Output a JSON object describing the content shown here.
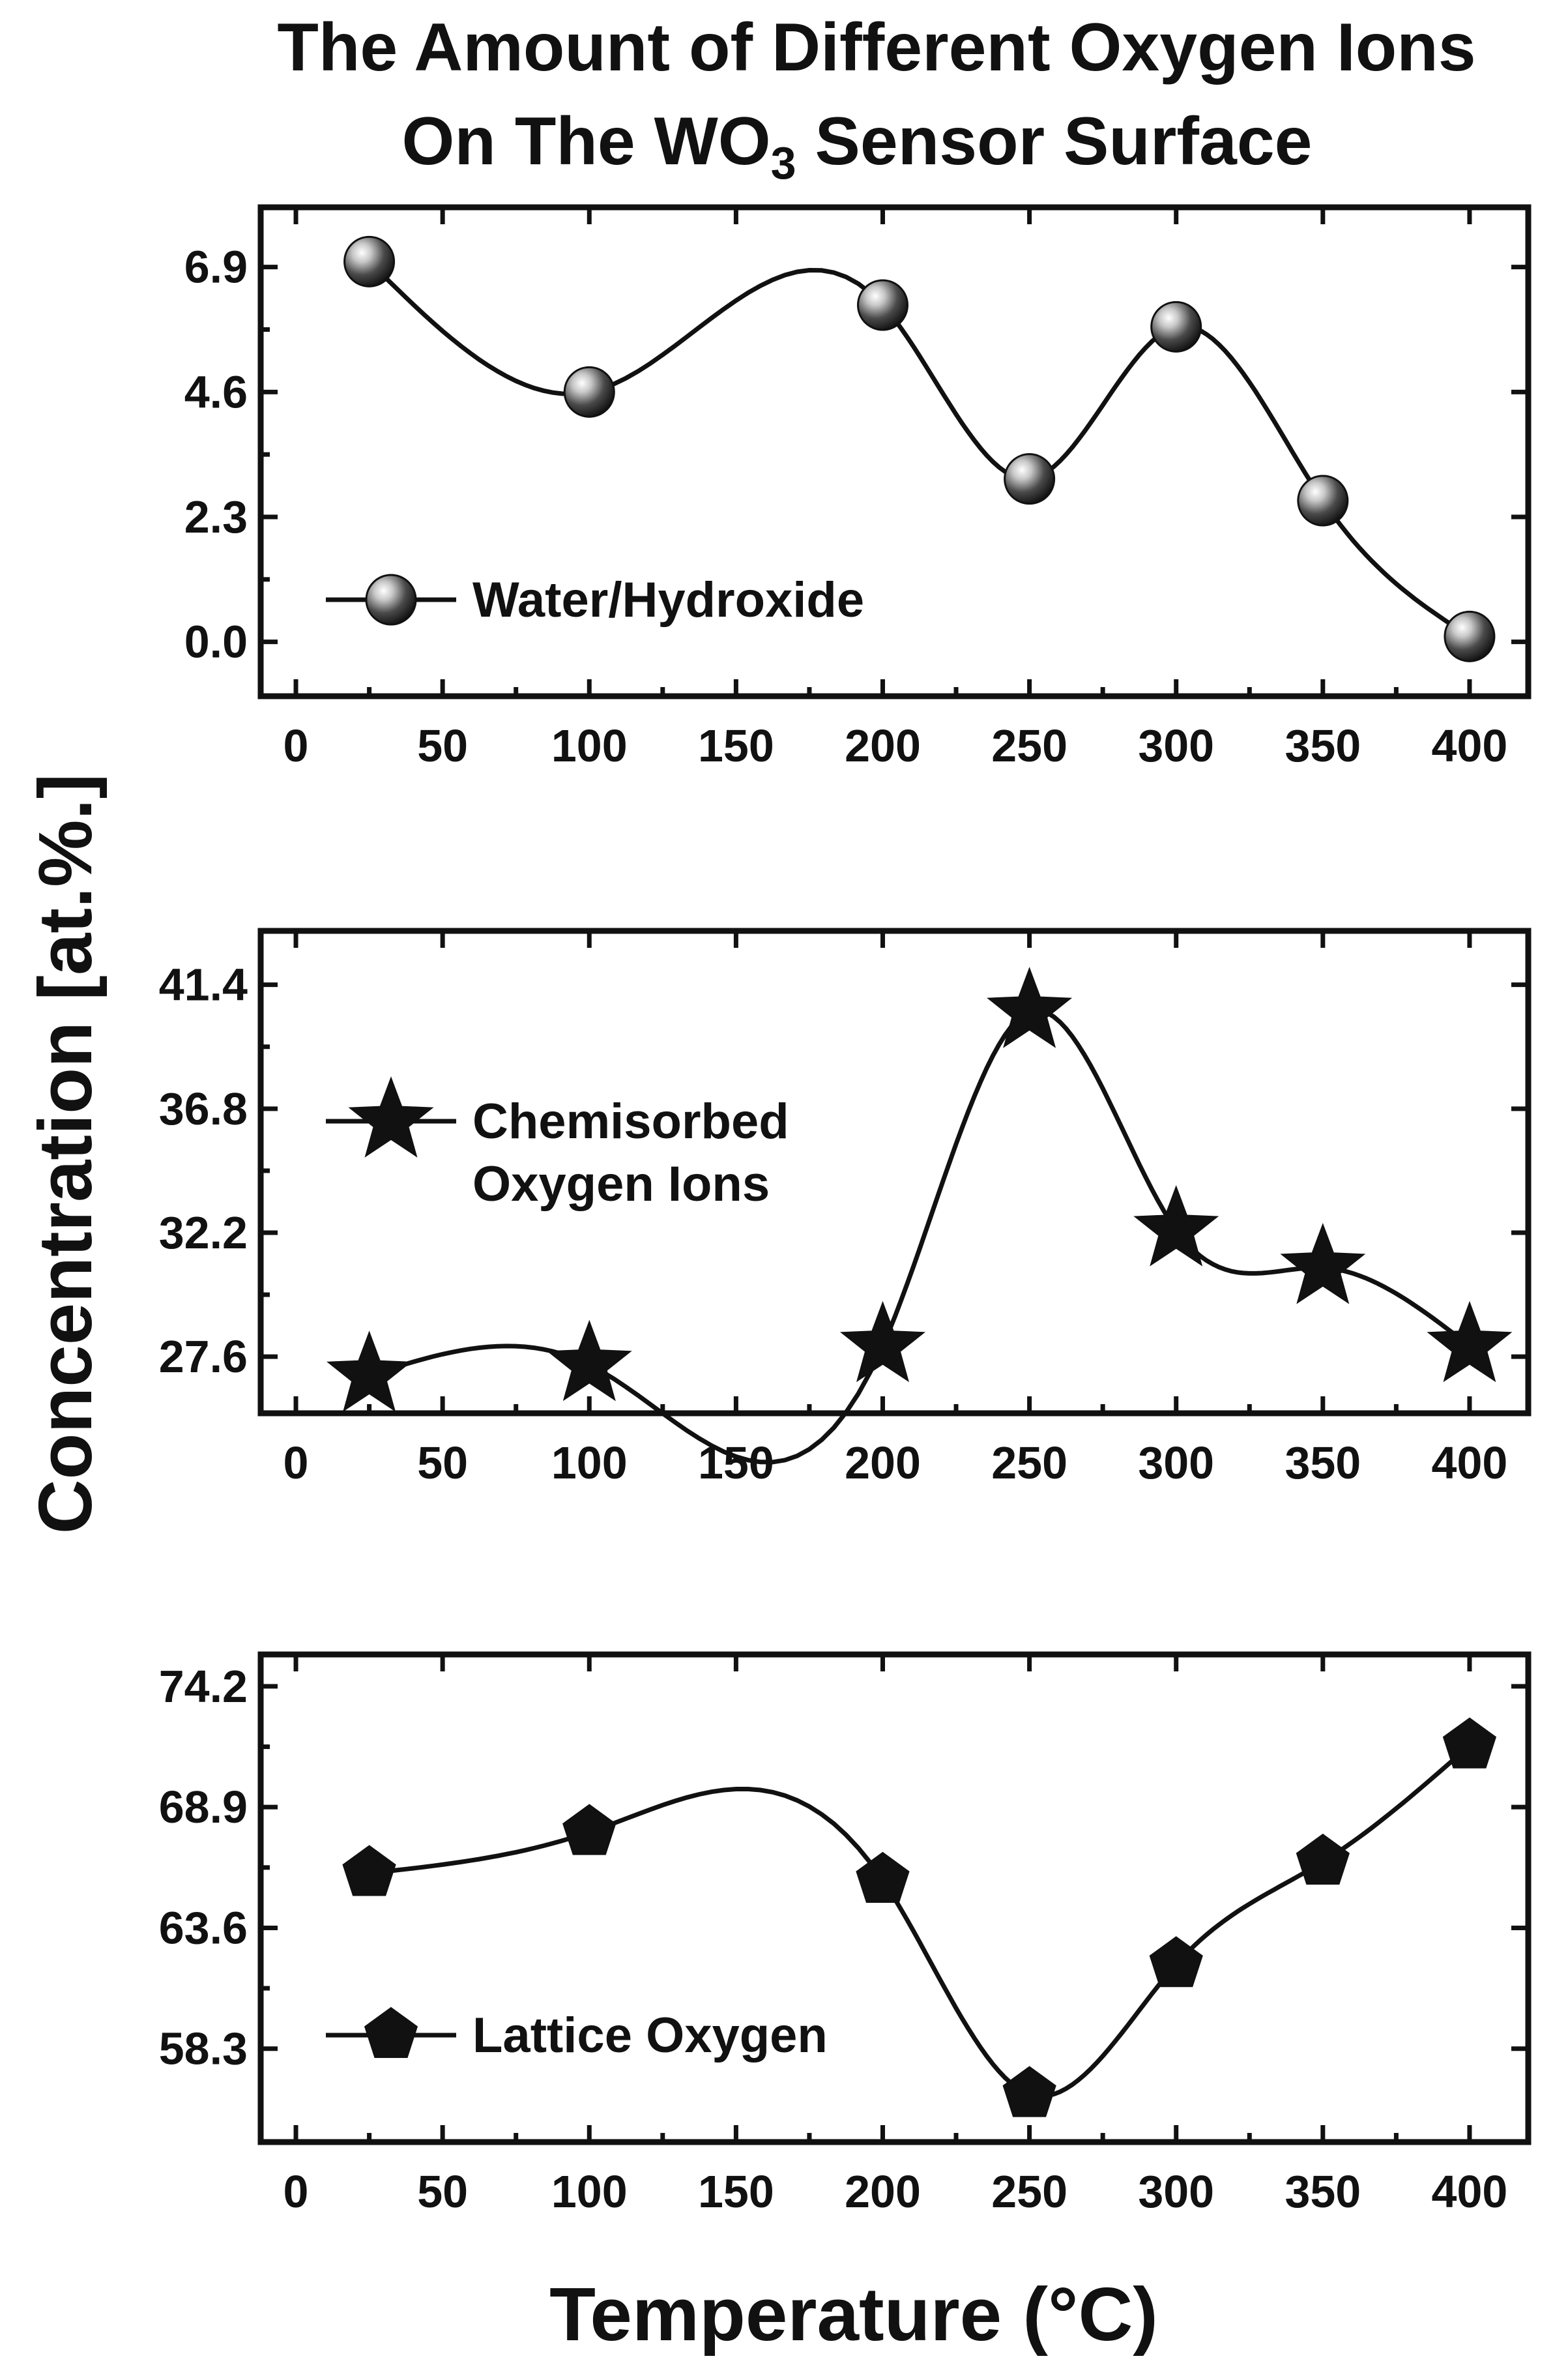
{
  "title_lines": [
    "The Amount of Different Oxygen Ions",
    "On The WO",
    "3",
    " Sensor Surface"
  ],
  "ylabel": "Concentration [at.%.]",
  "xlabel": "Temperature (°C)",
  "chart_data": [
    {
      "type": "line",
      "series_name": "Water/Hydroxide",
      "legend": [
        "Water/Hydroxide"
      ],
      "marker": "sphere",
      "x": [
        25,
        100,
        200,
        250,
        300,
        350,
        400
      ],
      "y": [
        7.0,
        4.6,
        6.2,
        3.0,
        5.8,
        2.6,
        0.1
      ],
      "xticks": [
        0,
        50,
        100,
        150,
        200,
        250,
        300,
        350,
        400
      ],
      "xtick_labels": [
        "0",
        "50",
        "100",
        "150",
        "200",
        "250",
        "300",
        "350",
        "400"
      ],
      "yticks": [
        0.0,
        2.3,
        4.6,
        6.9
      ],
      "ytick_labels": [
        "0.0",
        "2.3",
        "4.6",
        "6.9"
      ],
      "xlim": [
        -12,
        420
      ],
      "ylim": [
        -1.0,
        8.0
      ],
      "legend_position": "bottom-left"
    },
    {
      "type": "line",
      "series_name": "Chemisorbed Oxygen Ions",
      "legend": [
        "Chemisorbed",
        "Oxygen Ions"
      ],
      "marker": "star",
      "x": [
        25,
        100,
        200,
        250,
        300,
        350,
        400
      ],
      "y": [
        26.9,
        27.3,
        28.0,
        40.4,
        32.3,
        30.9,
        28.0
      ],
      "xticks": [
        0,
        50,
        100,
        150,
        200,
        250,
        300,
        350,
        400
      ],
      "xtick_labels": [
        "0",
        "50",
        "100",
        "150",
        "200",
        "250",
        "300",
        "350",
        "400"
      ],
      "yticks": [
        27.6,
        32.2,
        36.8,
        41.4
      ],
      "ytick_labels": [
        "27.6",
        "32.2",
        "36.8",
        "41.4"
      ],
      "xlim": [
        -12,
        420
      ],
      "ylim": [
        25.5,
        43.4
      ],
      "legend_position": "middle-left"
    },
    {
      "type": "line",
      "series_name": "Lattice Oxygen",
      "legend": [
        "Lattice Oxygen"
      ],
      "marker": "pentagon",
      "x": [
        25,
        100,
        200,
        250,
        300,
        350,
        400
      ],
      "y": [
        66.0,
        67.8,
        65.7,
        56.3,
        62.0,
        66.5,
        71.6
      ],
      "xticks": [
        0,
        50,
        100,
        150,
        200,
        250,
        300,
        350,
        400
      ],
      "xtick_labels": [
        "0",
        "50",
        "100",
        "150",
        "200",
        "250",
        "300",
        "350",
        "400"
      ],
      "yticks": [
        58.3,
        63.6,
        68.9,
        74.2
      ],
      "ytick_labels": [
        "58.3",
        "63.6",
        "68.9",
        "74.2"
      ],
      "xlim": [
        -12,
        420
      ],
      "ylim": [
        54.2,
        75.6
      ],
      "legend_position": "bottom-left"
    }
  ]
}
